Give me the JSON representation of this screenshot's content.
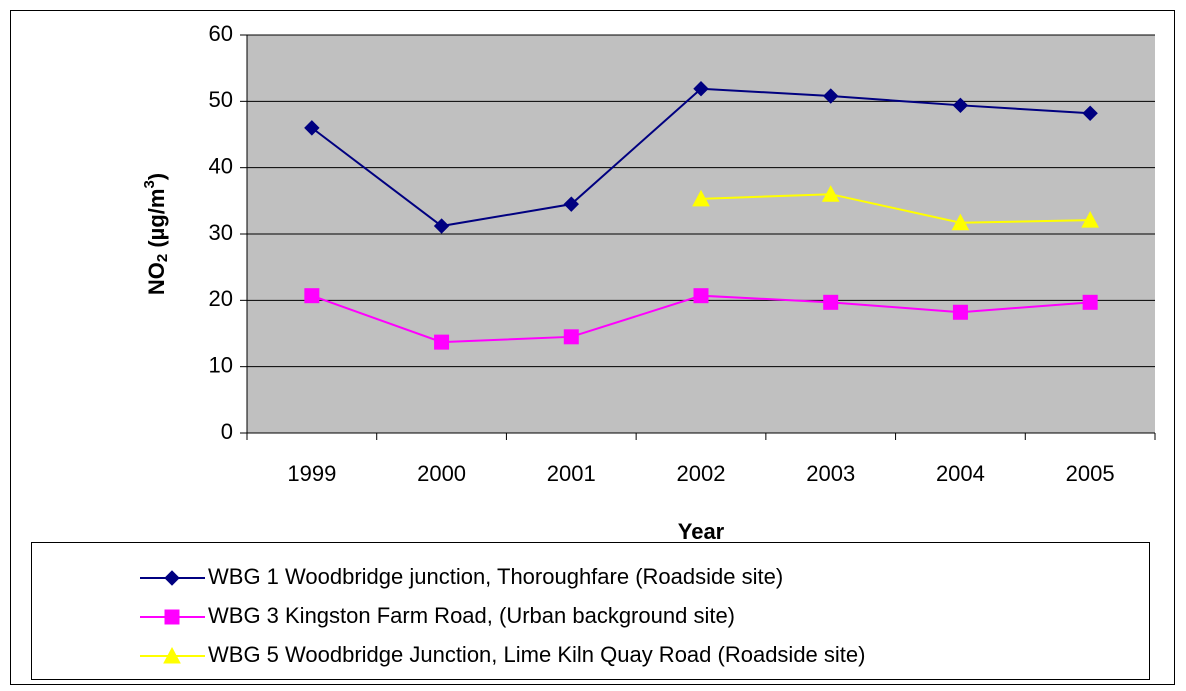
{
  "chart_data": {
    "type": "line",
    "y_label": [
      "NO",
      "2",
      " (µg/m",
      "3",
      ")"
    ],
    "x_label": "Year",
    "categories": [
      "1999",
      "2000",
      "2001",
      "2002",
      "2003",
      "2004",
      "2005"
    ],
    "series": [
      {
        "name": "WBG 1 Woodbridge junction, Thoroughfare (Roadside site)",
        "color": "#000080",
        "marker": "diamond",
        "values": [
          46,
          31.2,
          34.5,
          51.9,
          50.8,
          49.4,
          48.2
        ]
      },
      {
        "name": "WBG 3 Kingston Farm Road, (Urban background site)",
        "color": "#ff00ff",
        "marker": "square",
        "values": [
          20.7,
          13.7,
          14.5,
          20.7,
          19.7,
          18.2,
          19.7
        ]
      },
      {
        "name": "WBG 5 Woodbridge Junction, Lime Kiln Quay Road (Roadside site)",
        "color": "#ffff00",
        "marker": "triangle",
        "values": [
          null,
          null,
          null,
          35.3,
          36,
          31.7,
          32.1
        ]
      }
    ],
    "ylim": [
      0,
      60
    ],
    "yticks": [
      0,
      10,
      20,
      30,
      40,
      50,
      60
    ],
    "grid": true,
    "plot_background": "#c0c0c0",
    "legend": "bottom"
  }
}
